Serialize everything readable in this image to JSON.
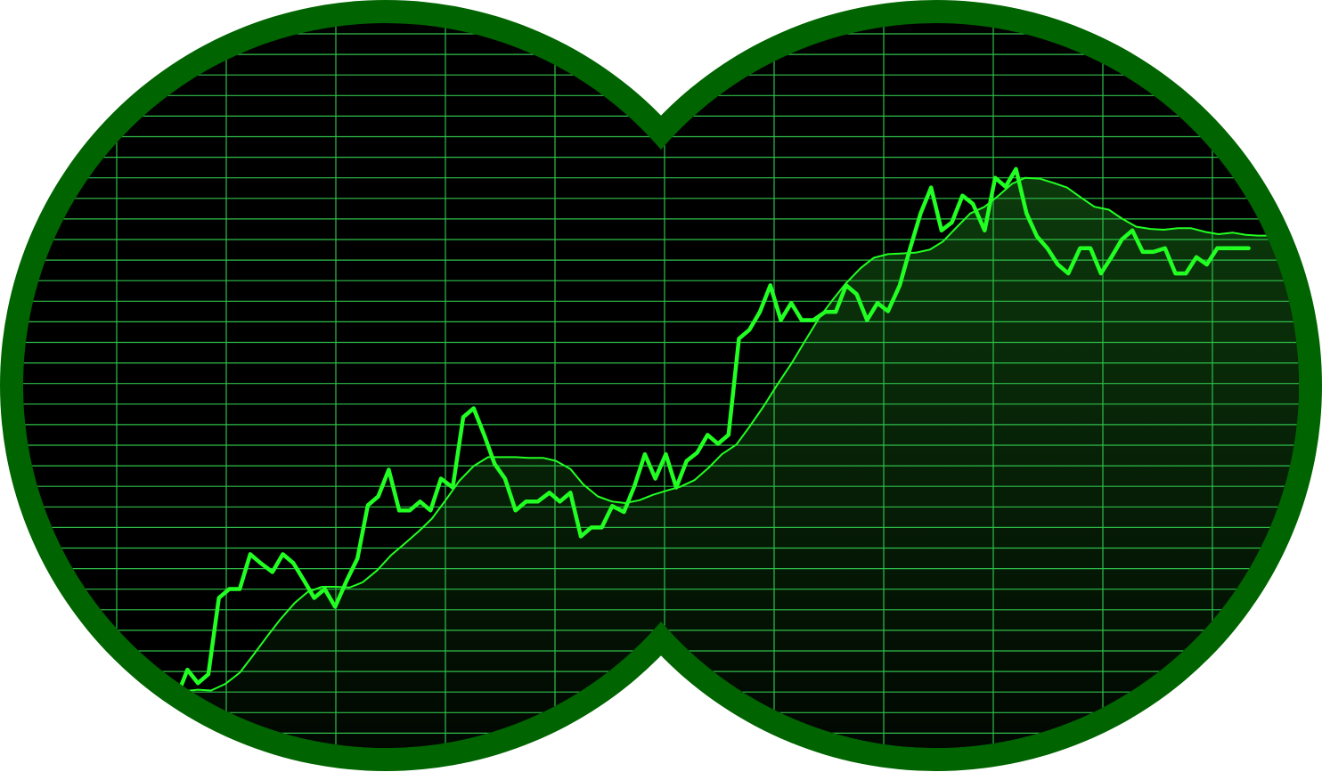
{
  "colors": {
    "frame": "#006400",
    "screen": "#000000",
    "grid": "#2fbf4a",
    "series": "#22ff22",
    "fill_top": "#0c3a0c",
    "fill_bottom": "#010501"
  },
  "chart_data": {
    "type": "line",
    "title": "",
    "xlabel": "",
    "ylabel": "",
    "grid": true,
    "legend": "none",
    "xlim": [
      0,
      100
    ],
    "ylim": [
      0,
      100
    ],
    "series": [
      {
        "role": "price",
        "values": [
          [
            12.2,
            9.6
          ],
          [
            13.0,
            10.2
          ],
          [
            13.8,
            13.8
          ],
          [
            14.6,
            12.0
          ],
          [
            15.4,
            13.2
          ],
          [
            16.2,
            23.5
          ],
          [
            17.0,
            24.7
          ],
          [
            17.8,
            24.7
          ],
          [
            18.6,
            29.4
          ],
          [
            19.4,
            28.2
          ],
          [
            20.3,
            27.0
          ],
          [
            21.1,
            29.4
          ],
          [
            21.9,
            28.2
          ],
          [
            22.7,
            25.9
          ],
          [
            23.5,
            23.5
          ],
          [
            24.3,
            24.7
          ],
          [
            25.1,
            22.3
          ],
          [
            26.0,
            25.9
          ],
          [
            26.8,
            28.8
          ],
          [
            27.6,
            36.0
          ],
          [
            28.4,
            37.2
          ],
          [
            29.2,
            40.8
          ],
          [
            30.0,
            35.3
          ],
          [
            30.8,
            35.3
          ],
          [
            31.6,
            36.5
          ],
          [
            32.4,
            35.3
          ],
          [
            33.2,
            39.6
          ],
          [
            34.1,
            38.4
          ],
          [
            34.9,
            47.9
          ],
          [
            35.7,
            49.1
          ],
          [
            36.5,
            45.5
          ],
          [
            37.3,
            41.6
          ],
          [
            38.1,
            39.6
          ],
          [
            38.9,
            35.3
          ],
          [
            39.7,
            36.5
          ],
          [
            40.6,
            36.5
          ],
          [
            41.5,
            37.7
          ],
          [
            42.3,
            36.5
          ],
          [
            43.1,
            37.7
          ],
          [
            43.9,
            31.8
          ],
          [
            44.7,
            33.0
          ],
          [
            45.5,
            33.0
          ],
          [
            46.3,
            35.9
          ],
          [
            47.2,
            35.1
          ],
          [
            48.0,
            38.6
          ],
          [
            48.8,
            42.9
          ],
          [
            49.6,
            39.6
          ],
          [
            50.4,
            42.9
          ],
          [
            51.2,
            38.4
          ],
          [
            52.0,
            42.0
          ],
          [
            52.8,
            43.1
          ],
          [
            53.6,
            45.5
          ],
          [
            54.4,
            44.3
          ],
          [
            55.2,
            45.5
          ],
          [
            56.0,
            58.5
          ],
          [
            56.8,
            59.7
          ],
          [
            57.6,
            62.1
          ],
          [
            58.4,
            65.7
          ],
          [
            59.2,
            61.0
          ],
          [
            60.0,
            63.3
          ],
          [
            60.8,
            61.0
          ],
          [
            61.7,
            61.0
          ],
          [
            62.6,
            62.1
          ],
          [
            63.4,
            62.1
          ],
          [
            64.2,
            65.7
          ],
          [
            65.0,
            64.5
          ],
          [
            65.8,
            61.0
          ],
          [
            66.6,
            63.3
          ],
          [
            67.4,
            62.2
          ],
          [
            68.3,
            65.7
          ],
          [
            69.1,
            70.7
          ],
          [
            69.9,
            75.4
          ],
          [
            70.7,
            78.9
          ],
          [
            71.5,
            73.1
          ],
          [
            72.3,
            74.2
          ],
          [
            73.1,
            77.8
          ],
          [
            73.9,
            76.7
          ],
          [
            74.8,
            73.1
          ],
          [
            75.6,
            80.2
          ],
          [
            76.4,
            79.0
          ],
          [
            77.2,
            81.4
          ],
          [
            78.0,
            75.4
          ],
          [
            78.8,
            72.3
          ],
          [
            79.6,
            70.7
          ],
          [
            80.4,
            68.5
          ],
          [
            81.2,
            67.3
          ],
          [
            82.1,
            70.7
          ],
          [
            82.9,
            70.7
          ],
          [
            83.7,
            67.3
          ],
          [
            84.5,
            69.5
          ],
          [
            85.3,
            71.9
          ],
          [
            86.1,
            73.1
          ],
          [
            86.9,
            70.2
          ],
          [
            87.7,
            70.2
          ],
          [
            88.6,
            70.7
          ],
          [
            89.4,
            67.3
          ],
          [
            90.2,
            67.3
          ],
          [
            91.0,
            69.5
          ],
          [
            91.8,
            68.5
          ],
          [
            92.6,
            70.7
          ],
          [
            93.4,
            70.7
          ],
          [
            94.2,
            70.7
          ],
          [
            95.0,
            70.7
          ]
        ]
      },
      {
        "role": "moving-average",
        "values": [
          [
            10.3,
            11.1
          ],
          [
            11.4,
            10.6
          ],
          [
            12.5,
            10.7
          ],
          [
            13.5,
            10.9
          ],
          [
            14.6,
            11.1
          ],
          [
            15.6,
            11.0
          ],
          [
            16.7,
            11.9
          ],
          [
            17.8,
            13.4
          ],
          [
            18.8,
            15.7
          ],
          [
            19.9,
            18.3
          ],
          [
            20.9,
            20.6
          ],
          [
            22.0,
            22.8
          ],
          [
            23.0,
            24.3
          ],
          [
            24.1,
            25.0
          ],
          [
            25.1,
            25.0
          ],
          [
            26.2,
            24.9
          ],
          [
            27.2,
            25.6
          ],
          [
            28.3,
            27.2
          ],
          [
            29.4,
            29.3
          ],
          [
            30.4,
            30.8
          ],
          [
            31.5,
            32.5
          ],
          [
            32.5,
            34.2
          ],
          [
            33.6,
            36.8
          ],
          [
            34.6,
            39.3
          ],
          [
            35.7,
            41.3
          ],
          [
            36.8,
            42.5
          ],
          [
            37.8,
            42.5
          ],
          [
            38.9,
            42.5
          ],
          [
            39.9,
            42.4
          ],
          [
            41.0,
            42.4
          ],
          [
            42.0,
            42.0
          ],
          [
            43.1,
            40.9
          ],
          [
            44.1,
            38.8
          ],
          [
            45.2,
            37.2
          ],
          [
            46.3,
            36.5
          ],
          [
            47.3,
            36.3
          ],
          [
            48.4,
            36.7
          ],
          [
            49.4,
            37.4
          ],
          [
            50.5,
            38.0
          ],
          [
            51.5,
            38.5
          ],
          [
            52.6,
            39.4
          ],
          [
            53.7,
            41.1
          ],
          [
            54.7,
            42.9
          ],
          [
            55.8,
            44.2
          ],
          [
            56.8,
            46.6
          ],
          [
            57.9,
            49.4
          ],
          [
            58.9,
            52.2
          ],
          [
            60.0,
            55.1
          ],
          [
            61.1,
            58.3
          ],
          [
            62.1,
            61.2
          ],
          [
            63.2,
            63.8
          ],
          [
            64.2,
            66.0
          ],
          [
            65.3,
            68.0
          ],
          [
            66.3,
            69.4
          ],
          [
            67.4,
            69.9
          ],
          [
            68.5,
            70.0
          ],
          [
            69.5,
            70.1
          ],
          [
            70.6,
            70.5
          ],
          [
            71.6,
            71.6
          ],
          [
            72.7,
            73.6
          ],
          [
            73.7,
            75.4
          ],
          [
            74.8,
            76.3
          ],
          [
            75.8,
            77.7
          ],
          [
            76.9,
            79.4
          ],
          [
            77.9,
            80.2
          ],
          [
            79.0,
            80.1
          ],
          [
            80.1,
            79.5
          ],
          [
            81.1,
            78.9
          ],
          [
            82.2,
            77.5
          ],
          [
            83.2,
            76.3
          ],
          [
            84.3,
            75.9
          ],
          [
            85.3,
            74.7
          ],
          [
            86.4,
            73.6
          ],
          [
            87.5,
            73.3
          ],
          [
            88.5,
            73.2
          ],
          [
            89.6,
            73.4
          ],
          [
            90.6,
            73.4
          ],
          [
            91.7,
            72.9
          ],
          [
            92.7,
            72.6
          ],
          [
            93.8,
            72.8
          ],
          [
            94.8,
            72.5
          ],
          [
            95.7,
            72.4
          ]
        ]
      }
    ]
  }
}
